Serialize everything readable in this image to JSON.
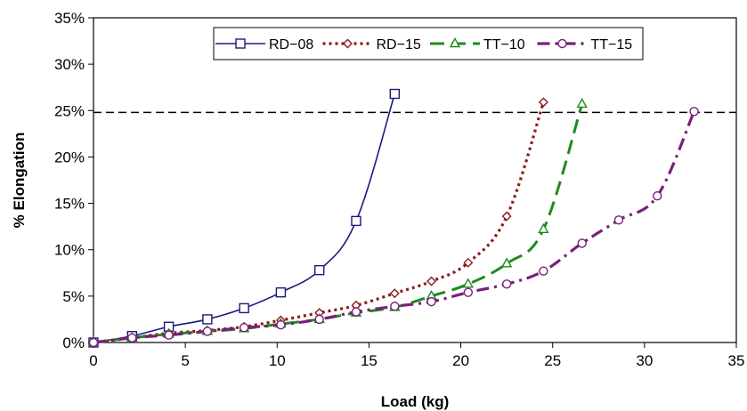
{
  "chart_data": {
    "type": "line",
    "xlabel": "Load (kg)",
    "ylabel": "% Elongation",
    "xlim": [
      0,
      35
    ],
    "ylim": [
      0,
      35
    ],
    "x_ticks": [
      0,
      5,
      10,
      15,
      20,
      25,
      30,
      35
    ],
    "x_tick_labels": [
      "0",
      "5",
      "10",
      "15",
      "20",
      "25",
      "30",
      "35"
    ],
    "y_ticks": [
      0,
      5,
      10,
      15,
      20,
      25,
      30,
      35
    ],
    "y_tick_labels": [
      "0%",
      "5%",
      "10%",
      "15%",
      "20%",
      "25%",
      "30%",
      "35%"
    ],
    "grid": false,
    "legend_position": "top",
    "reference_line": {
      "y": 24.8,
      "style": "dashed",
      "color": "#000000"
    },
    "series": [
      {
        "name": "RD−08",
        "color": "#1a1a80",
        "dash": "solid",
        "marker": "square",
        "x": [
          0,
          2.1,
          4.1,
          6.2,
          8.2,
          10.2,
          12.3,
          14.3,
          16.4
        ],
        "y": [
          0,
          0.7,
          1.7,
          2.5,
          3.7,
          5.4,
          7.8,
          13.1,
          26.8
        ]
      },
      {
        "name": "RD−15",
        "color": "#8b1a1a",
        "dash": "dotted",
        "marker": "diamond",
        "x": [
          0,
          2.1,
          4.1,
          6.2,
          8.2,
          10.2,
          12.3,
          14.3,
          16.4,
          18.4,
          20.4,
          22.5,
          24.5
        ],
        "y": [
          0,
          0.5,
          1.0,
          1.3,
          1.7,
          2.4,
          3.2,
          4.0,
          5.3,
          6.6,
          8.6,
          13.6,
          25.9
        ]
      },
      {
        "name": "TT−10",
        "color": "#1e8a1e",
        "dash": "longdash",
        "marker": "triangle",
        "x": [
          0,
          2.1,
          4.1,
          6.2,
          8.2,
          10.2,
          12.3,
          14.3,
          16.4,
          18.4,
          20.4,
          22.5,
          24.5,
          26.6
        ],
        "y": [
          0,
          0.5,
          0.9,
          1.2,
          1.5,
          2.0,
          2.5,
          3.2,
          3.8,
          5.0,
          6.3,
          8.5,
          12.2,
          25.7
        ]
      },
      {
        "name": "TT−15",
        "color": "#7a1f7a",
        "dash": "dashdot",
        "marker": "circle",
        "x": [
          0,
          2.1,
          4.1,
          6.2,
          8.2,
          10.2,
          12.3,
          14.3,
          16.4,
          18.4,
          20.4,
          22.5,
          24.5,
          26.6,
          28.6,
          30.7,
          32.7
        ],
        "y": [
          0,
          0.5,
          0.8,
          1.2,
          1.6,
          1.9,
          2.5,
          3.3,
          3.9,
          4.4,
          5.4,
          6.3,
          7.7,
          10.7,
          13.2,
          15.8,
          24.9
        ]
      }
    ]
  }
}
